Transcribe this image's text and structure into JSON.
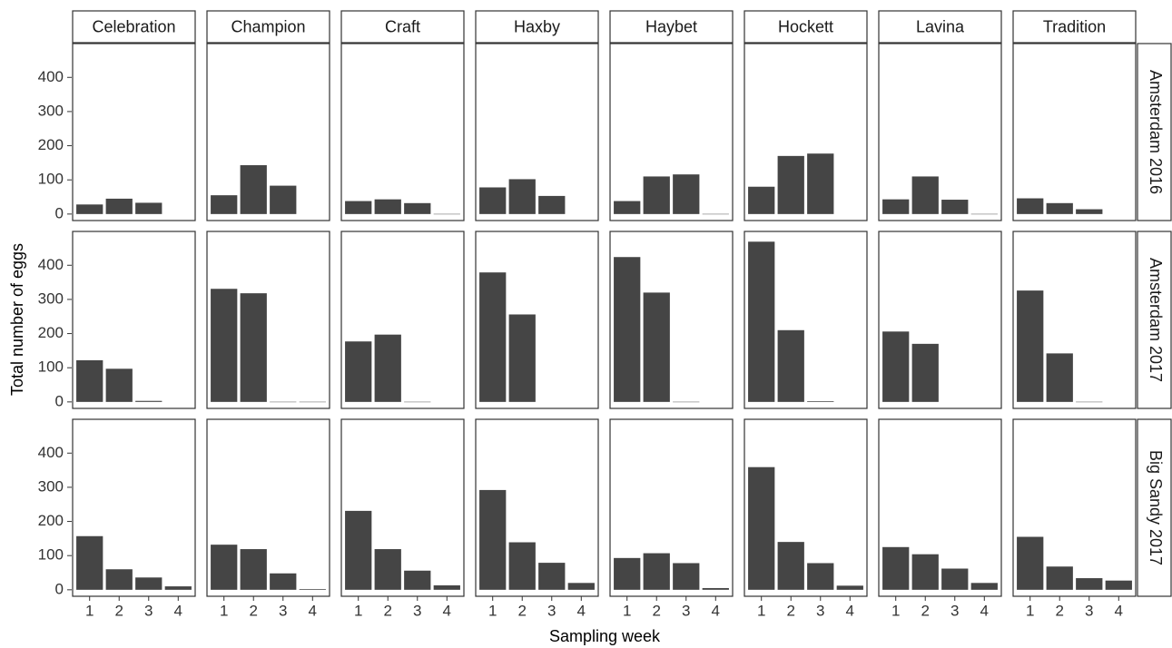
{
  "chart_data": {
    "type": "bar",
    "y_label": "Total number of eggs",
    "x_label": "Sampling week",
    "color": "#454545",
    "categories": [
      "1",
      "2",
      "3",
      "4"
    ],
    "columns": [
      "Celebration",
      "Champion",
      "Craft",
      "Haxby",
      "Haybet",
      "Hockett",
      "Lavina",
      "Tradition"
    ],
    "rows": [
      "Amsterdam 2016",
      "Amsterdam 2017",
      "Big Sandy 2017"
    ],
    "ylim": [
      -19,
      499
    ],
    "yticks": [
      0,
      100,
      200,
      300,
      400
    ],
    "panels": [
      [
        {
          "values": [
            28,
            45,
            33,
            null
          ]
        },
        {
          "values": [
            55,
            143,
            83,
            null
          ]
        },
        {
          "values": [
            38,
            43,
            32,
            0
          ]
        },
        {
          "values": [
            78,
            102,
            53,
            null
          ]
        },
        {
          "values": [
            38,
            110,
            116,
            0
          ]
        },
        {
          "values": [
            80,
            170,
            177,
            null
          ]
        },
        {
          "values": [
            43,
            110,
            42,
            0
          ]
        },
        {
          "values": [
            46,
            32,
            14,
            null
          ]
        }
      ],
      [
        {
          "values": [
            122,
            97,
            3,
            null
          ]
        },
        {
          "values": [
            331,
            318,
            0,
            0
          ]
        },
        {
          "values": [
            177,
            197,
            0,
            null
          ]
        },
        {
          "values": [
            379,
            256,
            null,
            null
          ]
        },
        {
          "values": [
            424,
            320,
            0,
            null
          ]
        },
        {
          "values": [
            469,
            210,
            2,
            null
          ]
        },
        {
          "values": [
            206,
            170,
            null,
            null
          ]
        },
        {
          "values": [
            326,
            142,
            0,
            null
          ]
        }
      ],
      [
        {
          "values": [
            157,
            60,
            36,
            10
          ]
        },
        {
          "values": [
            132,
            119,
            48,
            2
          ]
        },
        {
          "values": [
            231,
            119,
            56,
            13
          ]
        },
        {
          "values": [
            292,
            139,
            79,
            20
          ]
        },
        {
          "values": [
            93,
            107,
            78,
            5
          ]
        },
        {
          "values": [
            359,
            140,
            78,
            12
          ]
        },
        {
          "values": [
            125,
            104,
            62,
            20
          ]
        },
        {
          "values": [
            155,
            68,
            34,
            27
          ]
        }
      ]
    ]
  }
}
